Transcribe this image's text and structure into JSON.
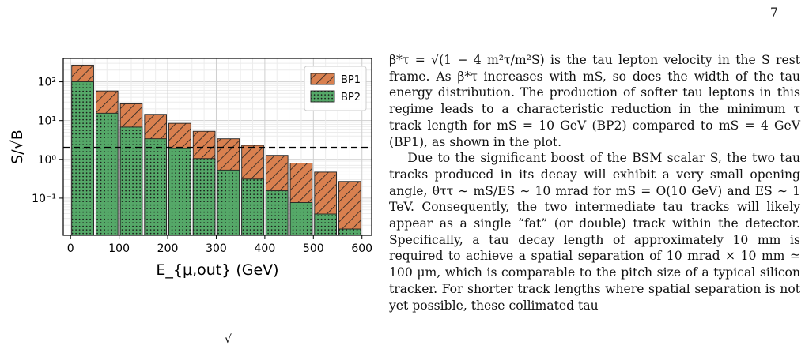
{
  "page_number": "7",
  "paragraphs": [
    "β*τ = √(1 − 4 m²τ/m²S) is the tau lepton velocity in the S rest frame. As β*τ increases with mS, so does the width of the tau energy distribution. The production of softer tau leptons in this regime leads to a characteristic reduction in the minimum τ track length for mS = 10 GeV (BP2) compared to mS = 4 GeV (BP1), as shown in the plot.",
    "Due to the significant boost of the BSM scalar S, the two tau tracks produced in its decay will exhibit a very small opening angle, θττ ∼ mS/ES ∼ 10 mrad for mS = O(10 GeV) and ES ∼ 1 TeV. Consequently, the two intermediate tau tracks will likely appear as a single “fat” (or double) track within the detector. Specifically, a tau decay length of approximately 10 mm is required to achieve a spatial separation of 10 mrad × 10 mm ≃ 100 μm, which is comparable to the pitch size of a typical silicon tracker. For shorter track lengths where spatial separation is not yet possible, these collimated tau"
  ],
  "caption_fragment": "√",
  "chart_data": {
    "type": "bar",
    "stacked": "overlay",
    "xlabel": "E_{μ,out} (GeV)",
    "ylabel": "S/√B",
    "yscale": "log",
    "xlim": [
      -15,
      620
    ],
    "ylim": [
      0.011,
      400
    ],
    "x_ticks": [
      0,
      100,
      200,
      300,
      400,
      500,
      600
    ],
    "y_ticks": [
      {
        "value": 0.1,
        "label": "10⁻¹"
      },
      {
        "value": 1,
        "label": "10⁰"
      },
      {
        "value": 10,
        "label": "10¹"
      },
      {
        "value": 100,
        "label": "10²"
      }
    ],
    "bin_edges": [
      0,
      50,
      100,
      150,
      200,
      250,
      300,
      350,
      400,
      450,
      500,
      550,
      600
    ],
    "series": [
      {
        "name": "BP1",
        "color": "#d9804f",
        "hatch": "diagonal",
        "values": [
          270,
          58,
          27,
          14.5,
          8.5,
          5.3,
          3.4,
          2.3,
          1.27,
          0.8,
          0.47,
          0.27
        ]
      },
      {
        "name": "BP2",
        "color": "#55a868",
        "hatch": "dots",
        "values": [
          100,
          15.5,
          6.8,
          3.4,
          1.9,
          1.05,
          0.53,
          0.31,
          0.155,
          0.077,
          0.039,
          0.016
        ]
      }
    ],
    "reference_line": {
      "value": 2,
      "style": "dashed",
      "color": "#000000"
    },
    "legend": "top-right",
    "grid": true
  }
}
